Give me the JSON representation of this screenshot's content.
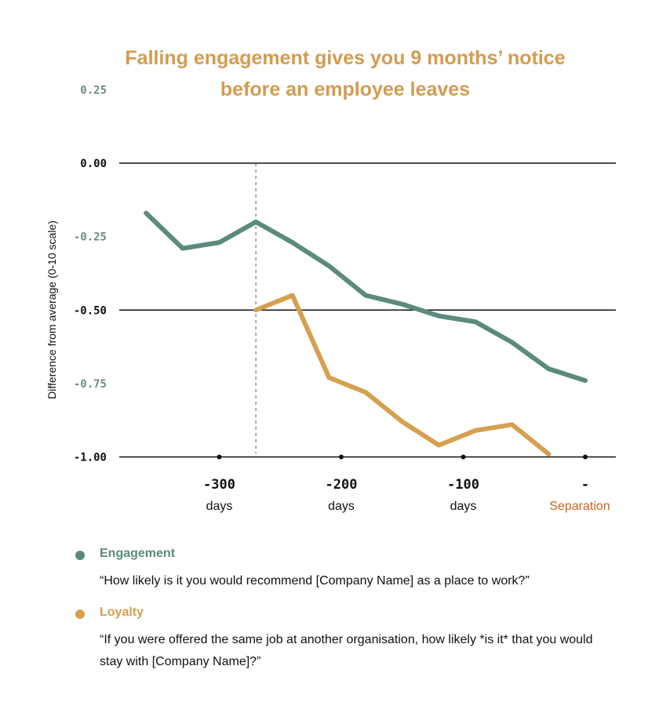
{
  "chart_data": {
    "type": "line",
    "title": "Falling engagement gives you 9 months’ notice before an employee leaves",
    "ylabel": "Difference from average (0-10 scale)",
    "xlabel": "",
    "ylim": [
      -1.0,
      0.25
    ],
    "xlim": [
      -370,
      10
    ],
    "yticks": [
      {
        "value": 0.25,
        "label": "0.25",
        "muted": true
      },
      {
        "value": 0.0,
        "label": "0.00",
        "muted": false
      },
      {
        "value": -0.25,
        "label": "-0.25",
        "muted": true
      },
      {
        "value": -0.5,
        "label": "-0.50",
        "muted": false
      },
      {
        "value": -0.75,
        "label": "-0.75",
        "muted": true
      },
      {
        "value": -1.0,
        "label": "-1.00",
        "muted": false
      }
    ],
    "gridlines": [
      0.0,
      -0.5,
      -1.0
    ],
    "xticks": [
      {
        "value": -300,
        "label": "-300",
        "sub": "days",
        "highlight": false
      },
      {
        "value": -200,
        "label": "-200",
        "sub": "days",
        "highlight": false
      },
      {
        "value": -100,
        "label": "-100",
        "sub": "days",
        "highlight": false
      },
      {
        "value": 0,
        "label": "-",
        "sub": "Separation",
        "highlight": true
      }
    ],
    "marker_line_x": -270,
    "series": [
      {
        "name": "Engagement",
        "color": "#5b8a7e",
        "x": [
          -360,
          -330,
          -300,
          -270,
          -240,
          -210,
          -180,
          -150,
          -120,
          -90,
          -60,
          -30,
          0
        ],
        "y": [
          -0.17,
          -0.29,
          -0.27,
          -0.2,
          -0.27,
          -0.35,
          -0.45,
          -0.48,
          -0.52,
          -0.54,
          -0.61,
          -0.7,
          -0.74
        ]
      },
      {
        "name": "Loyalty",
        "color": "#d5a04f",
        "x": [
          -270,
          -240,
          -210,
          -180,
          -150,
          -120,
          -90,
          -60,
          -30
        ],
        "y": [
          -0.5,
          -0.45,
          -0.73,
          -0.78,
          -0.88,
          -0.96,
          -0.91,
          -0.89,
          -0.99
        ]
      }
    ]
  },
  "legend": [
    {
      "name": "Engagement",
      "description": "“How likely is it you would recommend [Company Name] as a place to work?”"
    },
    {
      "name": "Loyalty",
      "description": "“If you were offered the same job at another organisation, how likely *is it* that you would stay with [Company Name]?”"
    }
  ],
  "colors": {
    "title": "#d39c4f",
    "muted_tick": "#6f8a86",
    "separation": "#c8641e"
  }
}
